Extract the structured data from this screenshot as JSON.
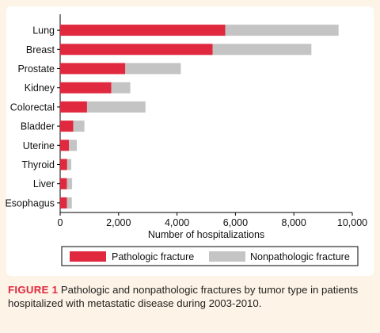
{
  "chart_data": {
    "type": "bar",
    "orientation": "horizontal",
    "stacked": true,
    "categories": [
      "Lung",
      "Breast",
      "Prostate",
      "Kidney",
      "Colorectal",
      "Bladder",
      "Uterine",
      "Thyroid",
      "Liver",
      "Esophagus"
    ],
    "series": [
      {
        "name": "Pathologic fracture",
        "color": "#e0283e",
        "values": [
          5650,
          5220,
          2230,
          1750,
          920,
          450,
          300,
          240,
          230,
          230
        ]
      },
      {
        "name": "Nonpathologic fracture",
        "color": "#c4c4c4",
        "values": [
          3880,
          3380,
          1900,
          650,
          2000,
          380,
          270,
          140,
          180,
          170
        ]
      }
    ],
    "xlabel": "Number of hospitalizations",
    "xlim": [
      0,
      10000
    ],
    "xticks": [
      0,
      2000,
      4000,
      6000,
      8000,
      10000
    ],
    "xtick_labels": [
      "0",
      "2,000",
      "4,000",
      "6,000",
      "8,000",
      "10,000"
    ],
    "grid": false,
    "legend_position": "bottom"
  },
  "caption": {
    "label": "FIGURE 1",
    "text": " Pathologic and nonpathologic fractures by tumor type in patients hospitalized with metastatic disease during 2003-2010."
  }
}
